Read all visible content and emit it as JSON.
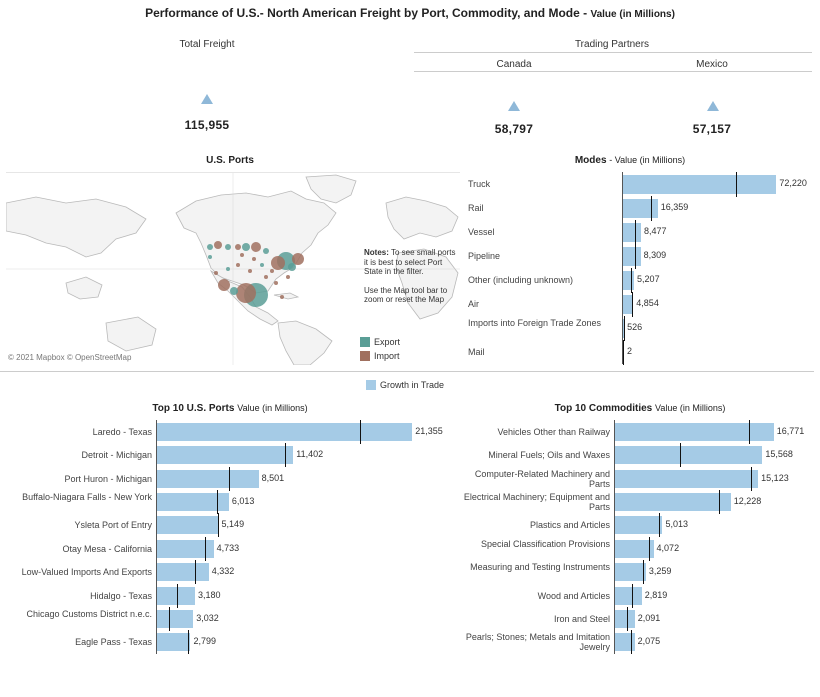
{
  "header": {
    "title": "Performance of U.S.- North American Freight by Port, Commodity, and Mode - ",
    "title_sub": "Value (in Millions)"
  },
  "kpis": {
    "total_label": "Total Freight",
    "total_value": "115,955",
    "trading_partners_label": "Trading Partners",
    "canada_label": "Canada",
    "canada_value": "58,797",
    "mexico_label": "Mexico",
    "mexico_value": "57,157"
  },
  "map": {
    "title": "U.S. Ports",
    "attribution": "© 2021 Mapbox © OpenStreetMap",
    "notes_bold": "Notes:",
    "notes_text1": " To see small ports it is best to select Port State in the filter.",
    "notes_text2": "Use the Map tool bar to zoom or reset the Map",
    "legend": [
      {
        "label": "Export",
        "color": "#5a9e96"
      },
      {
        "label": "Import",
        "color": "#a0705f"
      }
    ]
  },
  "growth_legend": {
    "label": "Growth in Trade",
    "color": "#a5cbe6"
  },
  "chart_data": [
    {
      "type": "bar",
      "orientation": "horizontal",
      "title": "Modes",
      "subtitle": "- Value (in Millions)",
      "categories": [
        "Truck",
        "Rail",
        "Vessel",
        "Pipeline",
        "Other (including unknown)",
        "Air",
        "Imports into Foreign Trade Zones",
        "Mail"
      ],
      "values": [
        72220,
        16359,
        8477,
        8309,
        5207,
        4854,
        526,
        2
      ],
      "value_labels": [
        "72,220",
        "16,359",
        "8,477",
        "8,309",
        "5,207",
        "4,854",
        "526",
        "2"
      ],
      "reference": [
        53000,
        13000,
        5500,
        5800,
        4000,
        4200,
        450,
        1
      ],
      "xlim": [
        0,
        73000
      ]
    },
    {
      "type": "bar",
      "orientation": "horizontal",
      "title": "Top 10 U.S. Ports",
      "subtitle": "Value (in Millions)",
      "categories": [
        "Laredo - Texas",
        "Detroit - Michigan",
        "Port Huron - Michigan",
        "Buffalo-Niagara Falls - New York",
        "Ysleta Port of Entry",
        "Otay Mesa - California",
        "Low-Valued Imports And Exports",
        "Hidalgo - Texas",
        "Chicago Customs District n.e.c.",
        "Eagle Pass - Texas"
      ],
      "values": [
        21355,
        11402,
        8501,
        6013,
        5149,
        4733,
        4332,
        3180,
        3032,
        2799
      ],
      "value_labels": [
        "21,355",
        "11,402",
        "8,501",
        "6,013",
        "5,149",
        "4,733",
        "4,332",
        "3,180",
        "3,032",
        "2,799"
      ],
      "reference": [
        17000,
        10700,
        6000,
        5000,
        5100,
        4000,
        3200,
        1700,
        1000,
        2600
      ],
      "xlim": [
        0,
        21500
      ]
    },
    {
      "type": "bar",
      "orientation": "horizontal",
      "title": "Top 10 Commodities",
      "subtitle": "Value (in Millions)",
      "categories": [
        "Vehicles Other than Railway",
        "Mineral Fuels; Oils and Waxes",
        "Computer-Related Machinery and Parts",
        "Electrical Machinery; Equipment and Parts",
        "Plastics and Articles",
        "Special Classification Provisions",
        "Measuring and Testing Instruments",
        "Wood and Articles",
        "Iron and Steel",
        "Pearls; Stones; Metals and Imitation Jewelry"
      ],
      "values": [
        16771,
        15568,
        15123,
        12228,
        5013,
        4072,
        3259,
        2819,
        2091,
        2075
      ],
      "value_labels": [
        "16,771",
        "15,568",
        "15,123",
        "12,228",
        "5,013",
        "4,072",
        "3,259",
        "2,819",
        "2,091",
        "2,075"
      ],
      "reference": [
        14200,
        6900,
        14400,
        11000,
        4600,
        3600,
        3000,
        1800,
        1300,
        1700
      ],
      "xlim": [
        0,
        16900
      ]
    }
  ]
}
